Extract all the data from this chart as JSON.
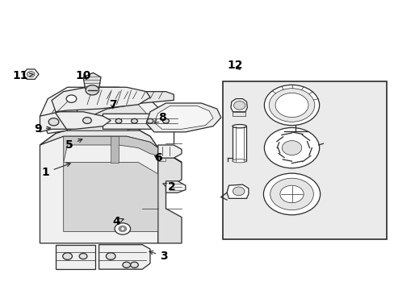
{
  "bg_color": "#ffffff",
  "line_color": "#2a2a2a",
  "label_color": "#000000",
  "box_fill": "#e8e8e8",
  "part_fill": "#ffffff",
  "shadow_fill": "#d0d0d0",
  "font_size": 10,
  "fig_w": 4.89,
  "fig_h": 3.6,
  "dpi": 100,
  "callouts": {
    "1": [
      0.115,
      0.405,
      0.185,
      0.44
    ],
    "2": [
      0.435,
      0.355,
      0.405,
      0.37
    ],
    "3": [
      0.415,
      0.115,
      0.37,
      0.135
    ],
    "4": [
      0.295,
      0.235,
      0.315,
      0.245
    ],
    "5": [
      0.175,
      0.5,
      0.215,
      0.525
    ],
    "6": [
      0.4,
      0.455,
      0.385,
      0.47
    ],
    "7": [
      0.285,
      0.64,
      0.285,
      0.615
    ],
    "8": [
      0.41,
      0.595,
      0.39,
      0.575
    ],
    "9": [
      0.095,
      0.555,
      0.135,
      0.56
    ],
    "10": [
      0.21,
      0.74,
      0.225,
      0.72
    ],
    "11": [
      0.05,
      0.74,
      0.085,
      0.745
    ],
    "12": [
      0.595,
      0.775,
      0.615,
      0.755
    ]
  }
}
